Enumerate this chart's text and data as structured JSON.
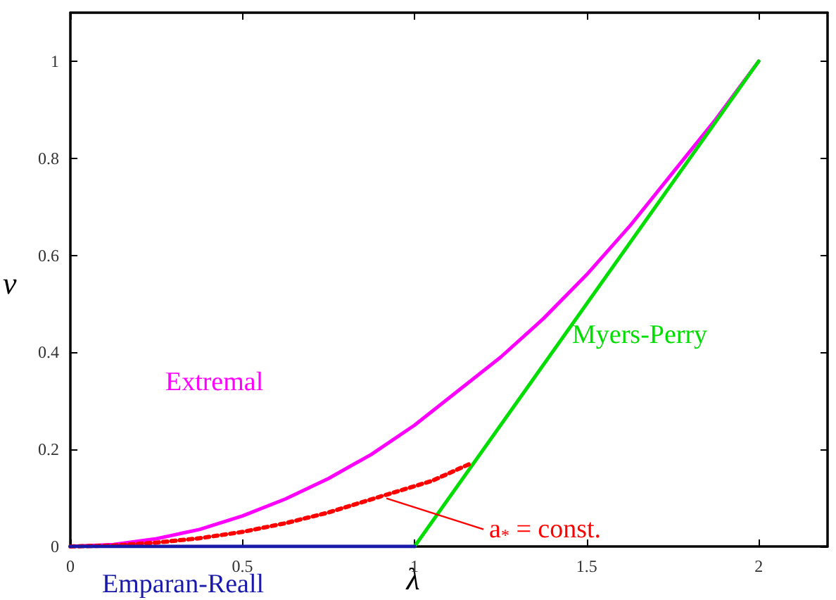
{
  "chart_data": {
    "type": "line",
    "xlabel": "λ",
    "ylabel": "ν",
    "xlim": [
      0,
      2.2
    ],
    "xticks": [
      0,
      0.5,
      1,
      1.5,
      2
    ],
    "ylim": [
      0,
      1.1
    ],
    "yticks": [
      0,
      0.2,
      0.4,
      0.6,
      0.8,
      1
    ],
    "annotations": [
      {
        "text": "a$_{*}$ = const.",
        "x": 0.91,
        "y": 0.105
      }
    ],
    "grid": false,
    "legend": false,
    "marker": "none",
    "series": [
      {
        "name": "Extremal",
        "color": "#ff00ff",
        "line_style": "solid",
        "x": [
          0,
          0.125,
          0.25,
          0.375,
          0.5,
          0.625,
          0.75,
          0.875,
          1,
          1.125,
          1.25,
          1.375,
          1.5,
          1.625,
          1.75,
          1.875,
          2
        ],
        "values": [
          0,
          0.004,
          0.016,
          0.035,
          0.063,
          0.098,
          0.14,
          0.19,
          0.25,
          0.32,
          0.39,
          0.47,
          0.56,
          0.66,
          0.77,
          0.88,
          1
        ]
      },
      {
        "name": "Myers-Perry",
        "color": "#00dd00",
        "line_style": "solid",
        "x": [
          1,
          2
        ],
        "values": [
          0,
          1
        ]
      },
      {
        "color": "#ff0000",
        "line_style": "dotted",
        "x": [
          0,
          0.125,
          0.25,
          0.375,
          0.5,
          0.625,
          0.75,
          0.91,
          1.05,
          1.16
        ],
        "values": [
          0,
          0.002,
          0.008,
          0.017,
          0.03,
          0.048,
          0.07,
          0.105,
          0.135,
          0.17
        ]
      },
      {
        "name": "Emparan-Reall",
        "color": "#1a1aaa",
        "line_style": "solid",
        "x": [
          0,
          1
        ],
        "values": [
          0,
          0
        ]
      }
    ]
  }
}
